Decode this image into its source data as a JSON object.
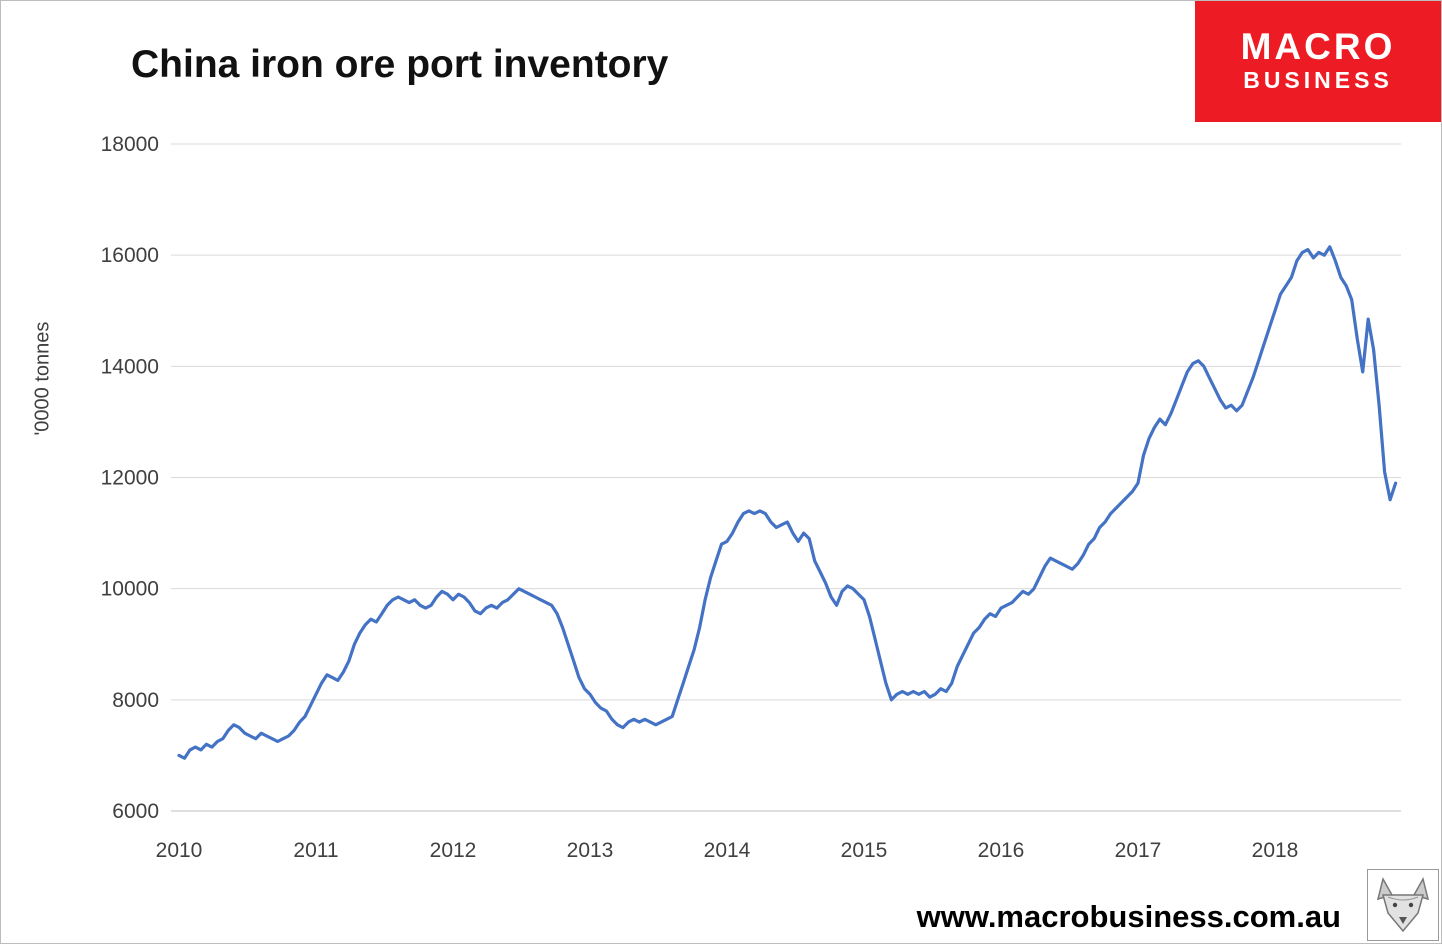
{
  "page": {
    "title": "China iron ore port inventory",
    "watermark": "www.macrobusiness.com.au"
  },
  "logo": {
    "line1": "MACRO",
    "line2": "BUSINESS",
    "bg_color": "#ed1c24",
    "text_color": "#ffffff"
  },
  "chart_data": {
    "type": "line",
    "title": "China iron ore port inventory",
    "xlabel": "",
    "ylabel": "'0000 tonnes",
    "line_color": "#4472C4",
    "grid_color": "#d9d9d9",
    "axis_color": "#bfbfbf",
    "ylim": [
      6000,
      18000
    ],
    "xlim": [
      2009.95,
      2018.95
    ],
    "grid": true,
    "legend": "none",
    "yticks": [
      6000,
      8000,
      10000,
      12000,
      14000,
      16000,
      18000
    ],
    "xticks": [
      2010,
      2011,
      2012,
      2013,
      2014,
      2015,
      2016,
      2017,
      2018
    ],
    "series": [
      {
        "name": "China iron ore port inventory ('0000 tonnes)",
        "points": [
          [
            2010.0,
            7000
          ],
          [
            2010.04,
            6950
          ],
          [
            2010.08,
            7100
          ],
          [
            2010.12,
            7150
          ],
          [
            2010.16,
            7100
          ],
          [
            2010.2,
            7200
          ],
          [
            2010.24,
            7150
          ],
          [
            2010.28,
            7250
          ],
          [
            2010.32,
            7300
          ],
          [
            2010.36,
            7450
          ],
          [
            2010.4,
            7550
          ],
          [
            2010.44,
            7500
          ],
          [
            2010.48,
            7400
          ],
          [
            2010.52,
            7350
          ],
          [
            2010.56,
            7300
          ],
          [
            2010.6,
            7400
          ],
          [
            2010.64,
            7350
          ],
          [
            2010.68,
            7300
          ],
          [
            2010.72,
            7250
          ],
          [
            2010.76,
            7300
          ],
          [
            2010.8,
            7350
          ],
          [
            2010.84,
            7450
          ],
          [
            2010.88,
            7600
          ],
          [
            2010.92,
            7700
          ],
          [
            2010.96,
            7900
          ],
          [
            2011.0,
            8100
          ],
          [
            2011.04,
            8300
          ],
          [
            2011.08,
            8450
          ],
          [
            2011.12,
            8400
          ],
          [
            2011.16,
            8350
          ],
          [
            2011.2,
            8500
          ],
          [
            2011.24,
            8700
          ],
          [
            2011.28,
            9000
          ],
          [
            2011.32,
            9200
          ],
          [
            2011.36,
            9350
          ],
          [
            2011.4,
            9450
          ],
          [
            2011.44,
            9400
          ],
          [
            2011.48,
            9550
          ],
          [
            2011.52,
            9700
          ],
          [
            2011.56,
            9800
          ],
          [
            2011.6,
            9850
          ],
          [
            2011.64,
            9800
          ],
          [
            2011.68,
            9750
          ],
          [
            2011.72,
            9800
          ],
          [
            2011.76,
            9700
          ],
          [
            2011.8,
            9650
          ],
          [
            2011.84,
            9700
          ],
          [
            2011.88,
            9850
          ],
          [
            2011.92,
            9950
          ],
          [
            2011.96,
            9900
          ],
          [
            2012.0,
            9800
          ],
          [
            2012.04,
            9900
          ],
          [
            2012.08,
            9850
          ],
          [
            2012.12,
            9750
          ],
          [
            2012.16,
            9600
          ],
          [
            2012.2,
            9550
          ],
          [
            2012.24,
            9650
          ],
          [
            2012.28,
            9700
          ],
          [
            2012.32,
            9650
          ],
          [
            2012.36,
            9750
          ],
          [
            2012.4,
            9800
          ],
          [
            2012.44,
            9900
          ],
          [
            2012.48,
            10000
          ],
          [
            2012.52,
            9950
          ],
          [
            2012.56,
            9900
          ],
          [
            2012.6,
            9850
          ],
          [
            2012.64,
            9800
          ],
          [
            2012.68,
            9750
          ],
          [
            2012.72,
            9700
          ],
          [
            2012.76,
            9550
          ],
          [
            2012.8,
            9300
          ],
          [
            2012.84,
            9000
          ],
          [
            2012.88,
            8700
          ],
          [
            2012.92,
            8400
          ],
          [
            2012.96,
            8200
          ],
          [
            2013.0,
            8100
          ],
          [
            2013.04,
            7950
          ],
          [
            2013.08,
            7850
          ],
          [
            2013.12,
            7800
          ],
          [
            2013.16,
            7650
          ],
          [
            2013.2,
            7550
          ],
          [
            2013.24,
            7500
          ],
          [
            2013.28,
            7600
          ],
          [
            2013.32,
            7650
          ],
          [
            2013.36,
            7600
          ],
          [
            2013.4,
            7650
          ],
          [
            2013.44,
            7600
          ],
          [
            2013.48,
            7550
          ],
          [
            2013.52,
            7600
          ],
          [
            2013.56,
            7650
          ],
          [
            2013.6,
            7700
          ],
          [
            2013.64,
            8000
          ],
          [
            2013.68,
            8300
          ],
          [
            2013.72,
            8600
          ],
          [
            2013.76,
            8900
          ],
          [
            2013.8,
            9300
          ],
          [
            2013.84,
            9800
          ],
          [
            2013.88,
            10200
          ],
          [
            2013.92,
            10500
          ],
          [
            2013.96,
            10800
          ],
          [
            2014.0,
            10850
          ],
          [
            2014.04,
            11000
          ],
          [
            2014.08,
            11200
          ],
          [
            2014.12,
            11350
          ],
          [
            2014.16,
            11400
          ],
          [
            2014.2,
            11350
          ],
          [
            2014.24,
            11400
          ],
          [
            2014.28,
            11350
          ],
          [
            2014.32,
            11200
          ],
          [
            2014.36,
            11100
          ],
          [
            2014.4,
            11150
          ],
          [
            2014.44,
            11200
          ],
          [
            2014.48,
            11000
          ],
          [
            2014.52,
            10850
          ],
          [
            2014.56,
            11000
          ],
          [
            2014.6,
            10900
          ],
          [
            2014.64,
            10500
          ],
          [
            2014.68,
            10300
          ],
          [
            2014.72,
            10100
          ],
          [
            2014.76,
            9850
          ],
          [
            2014.8,
            9700
          ],
          [
            2014.84,
            9950
          ],
          [
            2014.88,
            10050
          ],
          [
            2014.92,
            10000
          ],
          [
            2014.96,
            9900
          ],
          [
            2015.0,
            9800
          ],
          [
            2015.04,
            9500
          ],
          [
            2015.08,
            9100
          ],
          [
            2015.12,
            8700
          ],
          [
            2015.16,
            8300
          ],
          [
            2015.2,
            8000
          ],
          [
            2015.24,
            8100
          ],
          [
            2015.28,
            8150
          ],
          [
            2015.32,
            8100
          ],
          [
            2015.36,
            8150
          ],
          [
            2015.4,
            8100
          ],
          [
            2015.44,
            8150
          ],
          [
            2015.48,
            8050
          ],
          [
            2015.52,
            8100
          ],
          [
            2015.56,
            8200
          ],
          [
            2015.6,
            8150
          ],
          [
            2015.64,
            8300
          ],
          [
            2015.68,
            8600
          ],
          [
            2015.72,
            8800
          ],
          [
            2015.76,
            9000
          ],
          [
            2015.8,
            9200
          ],
          [
            2015.84,
            9300
          ],
          [
            2015.88,
            9450
          ],
          [
            2015.92,
            9550
          ],
          [
            2015.96,
            9500
          ],
          [
            2016.0,
            9650
          ],
          [
            2016.04,
            9700
          ],
          [
            2016.08,
            9750
          ],
          [
            2016.12,
            9850
          ],
          [
            2016.16,
            9950
          ],
          [
            2016.2,
            9900
          ],
          [
            2016.24,
            10000
          ],
          [
            2016.28,
            10200
          ],
          [
            2016.32,
            10400
          ],
          [
            2016.36,
            10550
          ],
          [
            2016.4,
            10500
          ],
          [
            2016.44,
            10450
          ],
          [
            2016.48,
            10400
          ],
          [
            2016.52,
            10350
          ],
          [
            2016.56,
            10450
          ],
          [
            2016.6,
            10600
          ],
          [
            2016.64,
            10800
          ],
          [
            2016.68,
            10900
          ],
          [
            2016.72,
            11100
          ],
          [
            2016.76,
            11200
          ],
          [
            2016.8,
            11350
          ],
          [
            2016.84,
            11450
          ],
          [
            2016.88,
            11550
          ],
          [
            2016.92,
            11650
          ],
          [
            2016.96,
            11750
          ],
          [
            2017.0,
            11900
          ],
          [
            2017.04,
            12400
          ],
          [
            2017.08,
            12700
          ],
          [
            2017.12,
            12900
          ],
          [
            2017.16,
            13050
          ],
          [
            2017.2,
            12950
          ],
          [
            2017.24,
            13150
          ],
          [
            2017.28,
            13400
          ],
          [
            2017.32,
            13650
          ],
          [
            2017.36,
            13900
          ],
          [
            2017.4,
            14050
          ],
          [
            2017.44,
            14100
          ],
          [
            2017.48,
            14000
          ],
          [
            2017.52,
            13800
          ],
          [
            2017.56,
            13600
          ],
          [
            2017.6,
            13400
          ],
          [
            2017.64,
            13250
          ],
          [
            2017.68,
            13300
          ],
          [
            2017.72,
            13200
          ],
          [
            2017.76,
            13300
          ],
          [
            2017.8,
            13550
          ],
          [
            2017.84,
            13800
          ],
          [
            2017.88,
            14100
          ],
          [
            2017.92,
            14400
          ],
          [
            2017.96,
            14700
          ],
          [
            2018.0,
            15000
          ],
          [
            2018.04,
            15300
          ],
          [
            2018.08,
            15450
          ],
          [
            2018.12,
            15600
          ],
          [
            2018.16,
            15900
          ],
          [
            2018.2,
            16050
          ],
          [
            2018.24,
            16100
          ],
          [
            2018.28,
            15950
          ],
          [
            2018.32,
            16050
          ],
          [
            2018.36,
            16000
          ],
          [
            2018.4,
            16150
          ],
          [
            2018.44,
            15900
          ],
          [
            2018.48,
            15600
          ],
          [
            2018.52,
            15450
          ],
          [
            2018.56,
            15200
          ],
          [
            2018.6,
            14500
          ],
          [
            2018.64,
            13900
          ],
          [
            2018.68,
            14850
          ],
          [
            2018.72,
            14300
          ],
          [
            2018.76,
            13300
          ],
          [
            2018.8,
            12100
          ],
          [
            2018.84,
            11600
          ],
          [
            2018.88,
            11900
          ]
        ]
      }
    ]
  }
}
